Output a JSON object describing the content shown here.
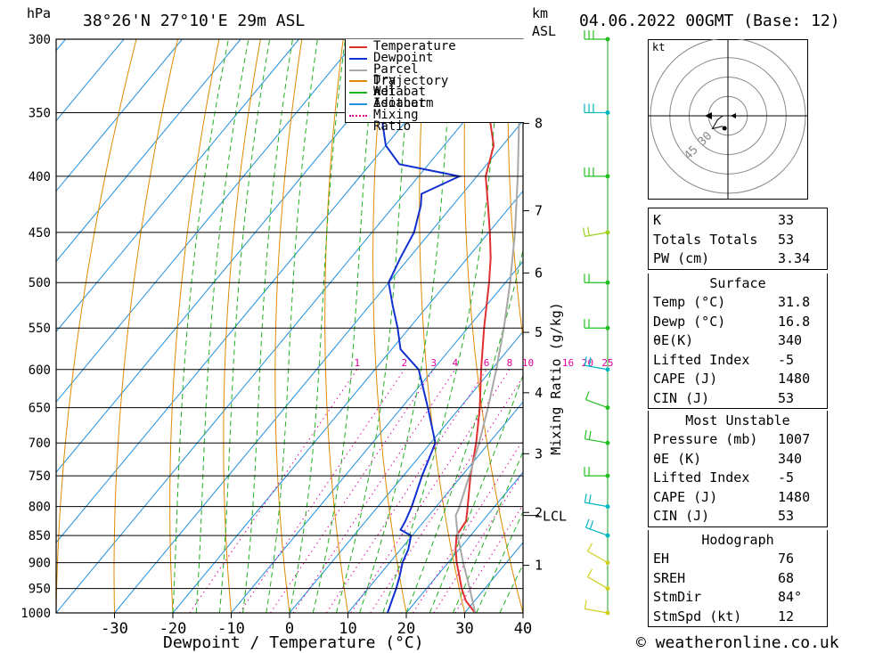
{
  "header": {
    "pressure_unit": "hPa",
    "location": "38°26'N  27°10'E  29m  ASL",
    "km_unit": "km",
    "asl_unit": "ASL",
    "datetime": "04.06.2022  00GMT  (Base: 12)"
  },
  "chart_data": {
    "type": "line",
    "subtype": "skew-T log-P sounding",
    "xlabel": "Dewpoint / Temperature (°C)",
    "ylabel": "hPa",
    "right_label": "Mixing Ratio (g/kg)",
    "x_ticks": [
      -30,
      -20,
      -10,
      0,
      10,
      20,
      30,
      40
    ],
    "pressure_levels": [
      300,
      350,
      400,
      450,
      500,
      550,
      600,
      650,
      700,
      750,
      800,
      850,
      900,
      950,
      1000
    ],
    "km_ticks": [
      {
        "p": 358,
        "label": "8"
      },
      {
        "p": 430,
        "label": "7"
      },
      {
        "p": 490,
        "label": "6"
      },
      {
        "p": 555,
        "label": "5"
      },
      {
        "p": 630,
        "label": "4"
      },
      {
        "p": 716,
        "label": "3"
      },
      {
        "p": 810,
        "label": "2"
      },
      {
        "p": 905,
        "label": "1"
      }
    ],
    "lcl": {
      "p": 815,
      "label": "LCL"
    },
    "mixing_ratio_labels": [
      "1",
      "2",
      "3",
      "4",
      "6",
      "8",
      "10",
      "16",
      "20",
      "25"
    ],
    "mixing_ratio_values": [
      1,
      2,
      3,
      4,
      6,
      8,
      10,
      16,
      20,
      25
    ],
    "legend": [
      {
        "name": "Temperature",
        "color": "#e03030",
        "style": "solid"
      },
      {
        "name": "Dewpoint",
        "color": "#1030d0",
        "style": "solid"
      },
      {
        "name": "Parcel Trajectory",
        "color": "#a8a8a8",
        "style": "solid"
      },
      {
        "name": "Dry Adiabat",
        "color": "#e08a00",
        "style": "solid"
      },
      {
        "name": "Wet Adiabat",
        "color": "#20b020",
        "style": "solid"
      },
      {
        "name": "Isotherm",
        "color": "#2090e0",
        "style": "solid"
      },
      {
        "name": "Mixing Ratio",
        "color": "#e000a0",
        "style": "dotted"
      }
    ],
    "series": [
      {
        "name": "Temperature",
        "color": "#e03030",
        "points": [
          [
            1000,
            31.8
          ],
          [
            975,
            28.5
          ],
          [
            950,
            26
          ],
          [
            925,
            23.8
          ],
          [
            900,
            21.5
          ],
          [
            875,
            19.4
          ],
          [
            850,
            17.6
          ],
          [
            825,
            17.2
          ],
          [
            800,
            15.4
          ],
          [
            750,
            11.5
          ],
          [
            700,
            7.8
          ],
          [
            650,
            3.4
          ],
          [
            600,
            -1.8
          ],
          [
            550,
            -7.2
          ],
          [
            500,
            -12.8
          ],
          [
            475,
            -16
          ],
          [
            450,
            -19.8
          ],
          [
            425,
            -24
          ],
          [
            400,
            -28.5
          ],
          [
            375,
            -31.5
          ],
          [
            350,
            -37
          ],
          [
            325,
            -42.5
          ],
          [
            300,
            -48
          ]
        ]
      },
      {
        "name": "Dewpoint",
        "color": "#1030d0",
        "points": [
          [
            1000,
            16.8
          ],
          [
            975,
            15.8
          ],
          [
            950,
            14.8
          ],
          [
            925,
            13.6
          ],
          [
            900,
            12.2
          ],
          [
            875,
            11.3
          ],
          [
            850,
            9.8
          ],
          [
            840,
            7.2
          ],
          [
            825,
            6.8
          ],
          [
            800,
            5.8
          ],
          [
            750,
            3.2
          ],
          [
            700,
            0.8
          ],
          [
            650,
            -5.5
          ],
          [
            600,
            -12.5
          ],
          [
            575,
            -18.5
          ],
          [
            550,
            -22
          ],
          [
            525,
            -26
          ],
          [
            500,
            -30
          ],
          [
            475,
            -31.5
          ],
          [
            450,
            -32.8
          ],
          [
            425,
            -35.5
          ],
          [
            415,
            -37
          ],
          [
            400,
            -33
          ],
          [
            390,
            -45
          ],
          [
            375,
            -50
          ],
          [
            350,
            -55.5
          ],
          [
            325,
            -60.5
          ],
          [
            305,
            -66
          ],
          [
            300,
            -70.5
          ]
        ]
      },
      {
        "name": "Parcel Trajectory",
        "color": "#a8a8a8",
        "points": [
          [
            1000,
            31.8
          ],
          [
            950,
            27.4
          ],
          [
            900,
            22.6
          ],
          [
            850,
            17.8
          ],
          [
            815,
            14.6
          ],
          [
            800,
            14
          ],
          [
            750,
            11.3
          ],
          [
            700,
            8.3
          ],
          [
            650,
            4.8
          ],
          [
            600,
            0.8
          ],
          [
            550,
            -3.8
          ],
          [
            500,
            -9.2
          ],
          [
            450,
            -15.5
          ],
          [
            400,
            -23
          ],
          [
            350,
            -31.8
          ],
          [
            300,
            -42.5
          ]
        ]
      }
    ],
    "wind_profile": [
      {
        "p": 1000,
        "dir": 280,
        "spd": 10,
        "color": "#d0d020"
      },
      {
        "p": 950,
        "dir": 300,
        "spd": 10,
        "color": "#d0d020"
      },
      {
        "p": 900,
        "dir": 300,
        "spd": 10,
        "color": "#d0d020"
      },
      {
        "p": 850,
        "dir": 290,
        "spd": 15,
        "color": "#00b8c0"
      },
      {
        "p": 800,
        "dir": 280,
        "spd": 20,
        "color": "#00b8c0"
      },
      {
        "p": 750,
        "dir": 270,
        "spd": 15,
        "color": "#20c020"
      },
      {
        "p": 700,
        "dir": 280,
        "spd": 15,
        "color": "#20c020"
      },
      {
        "p": 650,
        "dir": 290,
        "spd": 10,
        "color": "#20c020"
      },
      {
        "p": 600,
        "dir": 280,
        "spd": 15,
        "color": "#00b8c0"
      },
      {
        "p": 550,
        "dir": 270,
        "spd": 15,
        "color": "#20c020"
      },
      {
        "p": 500,
        "dir": 270,
        "spd": 20,
        "color": "#20c020"
      },
      {
        "p": 450,
        "dir": 260,
        "spd": 15,
        "color": "#a0d020"
      },
      {
        "p": 400,
        "dir": 270,
        "spd": 25,
        "color": "#20c020"
      },
      {
        "p": 350,
        "dir": 270,
        "spd": 25,
        "color": "#00b8c0"
      },
      {
        "p": 300,
        "dir": 270,
        "spd": 30,
        "color": "#20c020"
      }
    ]
  },
  "hodograph": {
    "unit": "kt",
    "ring_labels": [
      "30",
      "45"
    ],
    "points": [
      [
        -4,
        8
      ],
      [
        -12,
        10
      ],
      [
        -8,
        3
      ],
      [
        -4,
        0
      ],
      [
        -14,
        0
      ],
      [
        -24,
        0
      ]
    ]
  },
  "indices": [
    {
      "title": "",
      "rows": [
        {
          "key": "K",
          "value": "33"
        },
        {
          "key": "Totals Totals",
          "value": "53"
        },
        {
          "key": "PW (cm)",
          "value": "3.34"
        }
      ]
    },
    {
      "title": "Surface",
      "rows": [
        {
          "key": "Temp (°C)",
          "value": "31.8"
        },
        {
          "key": "Dewp (°C)",
          "value": "16.8"
        },
        {
          "key": "θE(K)",
          "value": "340"
        },
        {
          "key": "Lifted Index",
          "value": "-5"
        },
        {
          "key": "CAPE (J)",
          "value": "1480"
        },
        {
          "key": "CIN (J)",
          "value": "53"
        }
      ]
    },
    {
      "title": "Most Unstable",
      "rows": [
        {
          "key": "Pressure (mb)",
          "value": "1007"
        },
        {
          "key": "θE (K)",
          "value": "340"
        },
        {
          "key": "Lifted Index",
          "value": "-5"
        },
        {
          "key": "CAPE (J)",
          "value": "1480"
        },
        {
          "key": "CIN (J)",
          "value": "53"
        }
      ]
    },
    {
      "title": "Hodograph",
      "rows": [
        {
          "key": "EH",
          "value": "76"
        },
        {
          "key": "SREH",
          "value": "68"
        },
        {
          "key": "StmDir",
          "value": "84°"
        },
        {
          "key": "StmSpd (kt)",
          "value": "12"
        }
      ]
    }
  ],
  "footer": {
    "credit": "© weatheronline.co.uk"
  }
}
